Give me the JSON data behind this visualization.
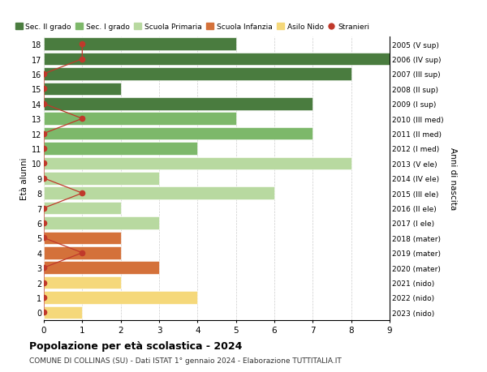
{
  "ages": [
    18,
    17,
    16,
    15,
    14,
    13,
    12,
    11,
    10,
    9,
    8,
    7,
    6,
    5,
    4,
    3,
    2,
    1,
    0
  ],
  "years": [
    "2005 (V sup)",
    "2006 (IV sup)",
    "2007 (III sup)",
    "2008 (II sup)",
    "2009 (I sup)",
    "2010 (III med)",
    "2011 (II med)",
    "2012 (I med)",
    "2013 (V ele)",
    "2014 (IV ele)",
    "2015 (III ele)",
    "2016 (II ele)",
    "2017 (I ele)",
    "2018 (mater)",
    "2019 (mater)",
    "2020 (mater)",
    "2021 (nido)",
    "2022 (nido)",
    "2023 (nido)"
  ],
  "bar_values": [
    5,
    9,
    8,
    2,
    7,
    5,
    7,
    4,
    8,
    3,
    6,
    2,
    3,
    2,
    2,
    3,
    2,
    4,
    1
  ],
  "categories": [
    "Sec. II grado",
    "Sec. II grado",
    "Sec. II grado",
    "Sec. II grado",
    "Sec. II grado",
    "Sec. I grado",
    "Sec. I grado",
    "Sec. I grado",
    "Scuola Primaria",
    "Scuola Primaria",
    "Scuola Primaria",
    "Scuola Primaria",
    "Scuola Primaria",
    "Scuola Infanzia",
    "Scuola Infanzia",
    "Scuola Infanzia",
    "Asilo Nido",
    "Asilo Nido",
    "Asilo Nido"
  ],
  "stranieri": [
    1,
    1,
    0,
    0,
    0,
    1,
    0,
    0,
    0,
    0,
    1,
    0,
    0,
    0,
    1,
    0,
    0,
    0,
    0
  ],
  "colors": {
    "Sec. II grado": "#4a7c3f",
    "Sec. I grado": "#7db86a",
    "Scuola Primaria": "#b8d9a0",
    "Scuola Infanzia": "#d4713a",
    "Asilo Nido": "#f5d87a"
  },
  "stranieri_color": "#c0392b",
  "title": "Popolazione per età scolastica - 2024",
  "subtitle": "COMUNE DI COLLINAS (SU) - Dati ISTAT 1° gennaio 2024 - Elaborazione TUTTITALIA.IT",
  "ylabel_left": "Età alunni",
  "ylabel_right": "Anni di nascita",
  "xlim": [
    0,
    9
  ],
  "ylim": [
    -0.5,
    18.5
  ],
  "legend_labels": [
    "Sec. II grado",
    "Sec. I grado",
    "Scuola Primaria",
    "Scuola Infanzia",
    "Asilo Nido",
    "Stranieri"
  ]
}
